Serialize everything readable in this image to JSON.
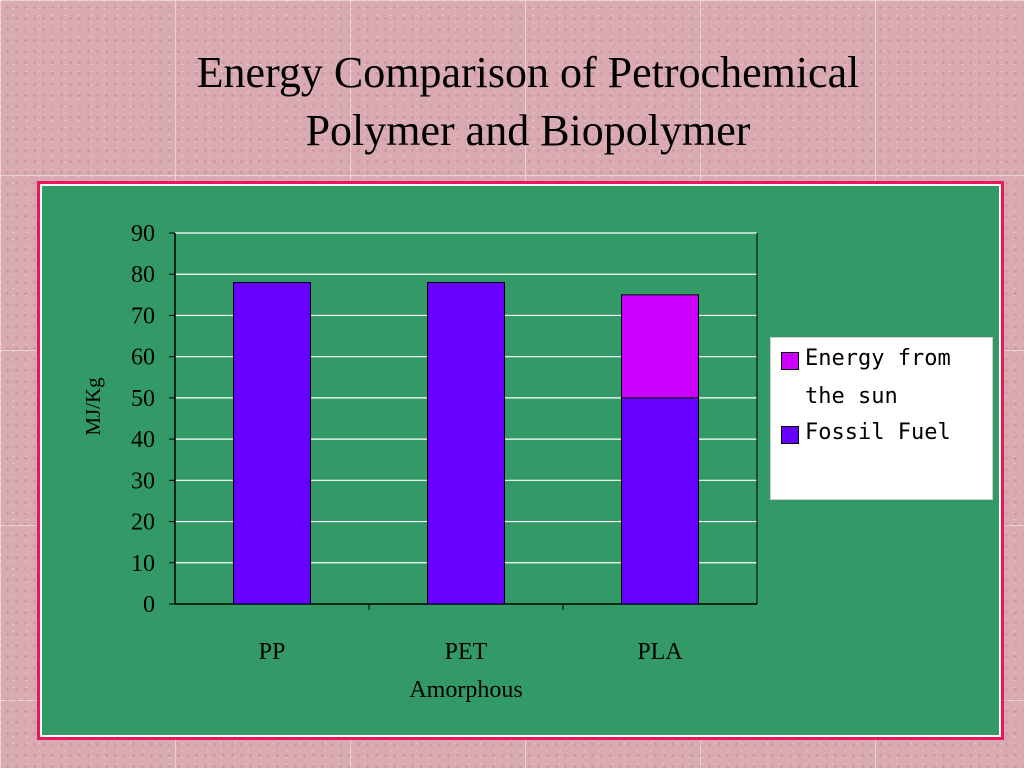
{
  "slide": {
    "title_line1": "Energy Comparison of Petrochemical",
    "title_line2": "Polymer and Biopolymer"
  },
  "colors": {
    "background": "#d9aab2",
    "frame_border": "#e8185a",
    "plot_area": "#339966",
    "fossil_fuel": "#6600ff",
    "energy_from_sun": "#cc00ff"
  },
  "chart_data": {
    "type": "bar",
    "stacked": true,
    "title": "",
    "categories": [
      "PP",
      "PET",
      "PLA"
    ],
    "category_sublabels": [
      "",
      "Amorphous",
      ""
    ],
    "ylabel": "MJ/Kg",
    "xlabel": "",
    "ylim": [
      0,
      90
    ],
    "yticks": [
      0,
      10,
      20,
      30,
      40,
      50,
      60,
      70,
      80,
      90
    ],
    "grid": true,
    "legend_position": "right",
    "series": [
      {
        "name": "Fossil Fuel",
        "values": [
          78,
          78,
          50
        ],
        "color": "#6600ff"
      },
      {
        "name": "Energy from the sun",
        "values": [
          0,
          0,
          25
        ],
        "color": "#cc00ff"
      }
    ],
    "legend_order": [
      "Energy from the sun",
      "Fossil Fuel"
    ]
  }
}
